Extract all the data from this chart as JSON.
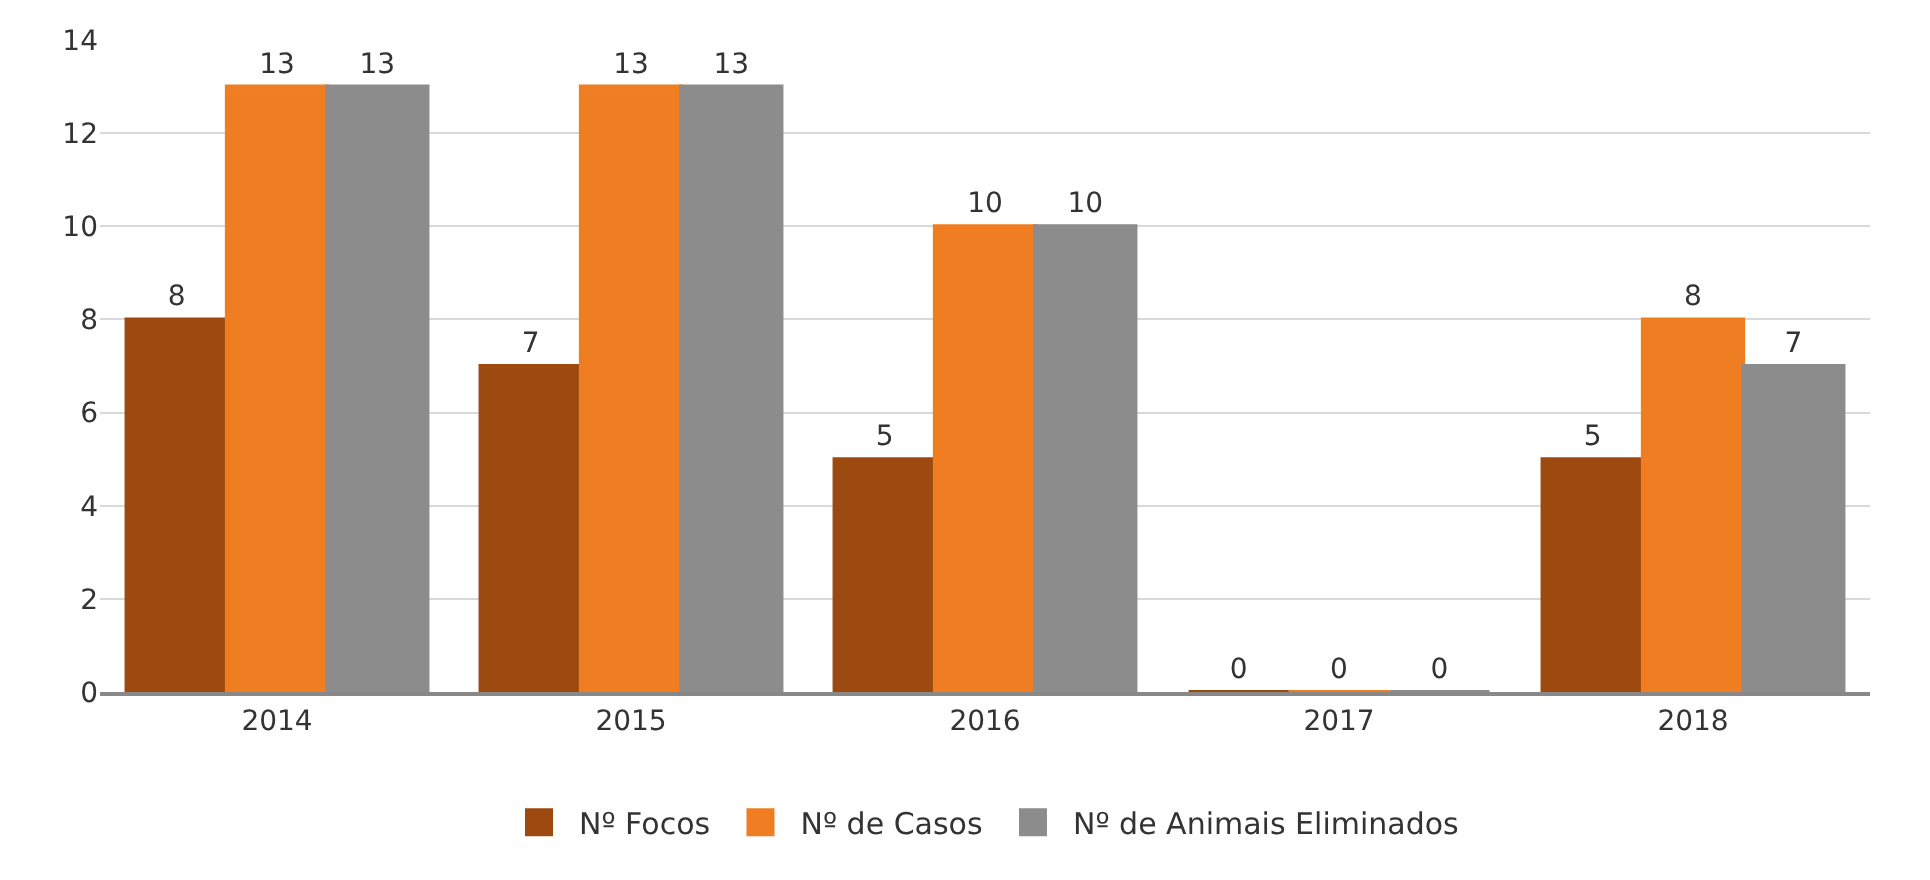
{
  "chart_data": {
    "type": "bar",
    "categories": [
      "2014",
      "2015",
      "2016",
      "2017",
      "2018"
    ],
    "series": [
      {
        "name": "Nº Focos",
        "color": "#9c4a10",
        "values": [
          8,
          7,
          5,
          0,
          5
        ]
      },
      {
        "name": "Nº de Casos",
        "color": "#ef7d22",
        "values": [
          13,
          13,
          10,
          0,
          8
        ]
      },
      {
        "name": "Nº de Animais Eliminados",
        "color": "#8c8c8c",
        "values": [
          13,
          13,
          10,
          0,
          7
        ]
      }
    ],
    "ylim": [
      0,
      14
    ],
    "yticks": [
      0,
      2,
      4,
      6,
      8,
      10,
      12,
      14
    ],
    "grid": "y",
    "legend": "bottom",
    "data_labels": true
  }
}
